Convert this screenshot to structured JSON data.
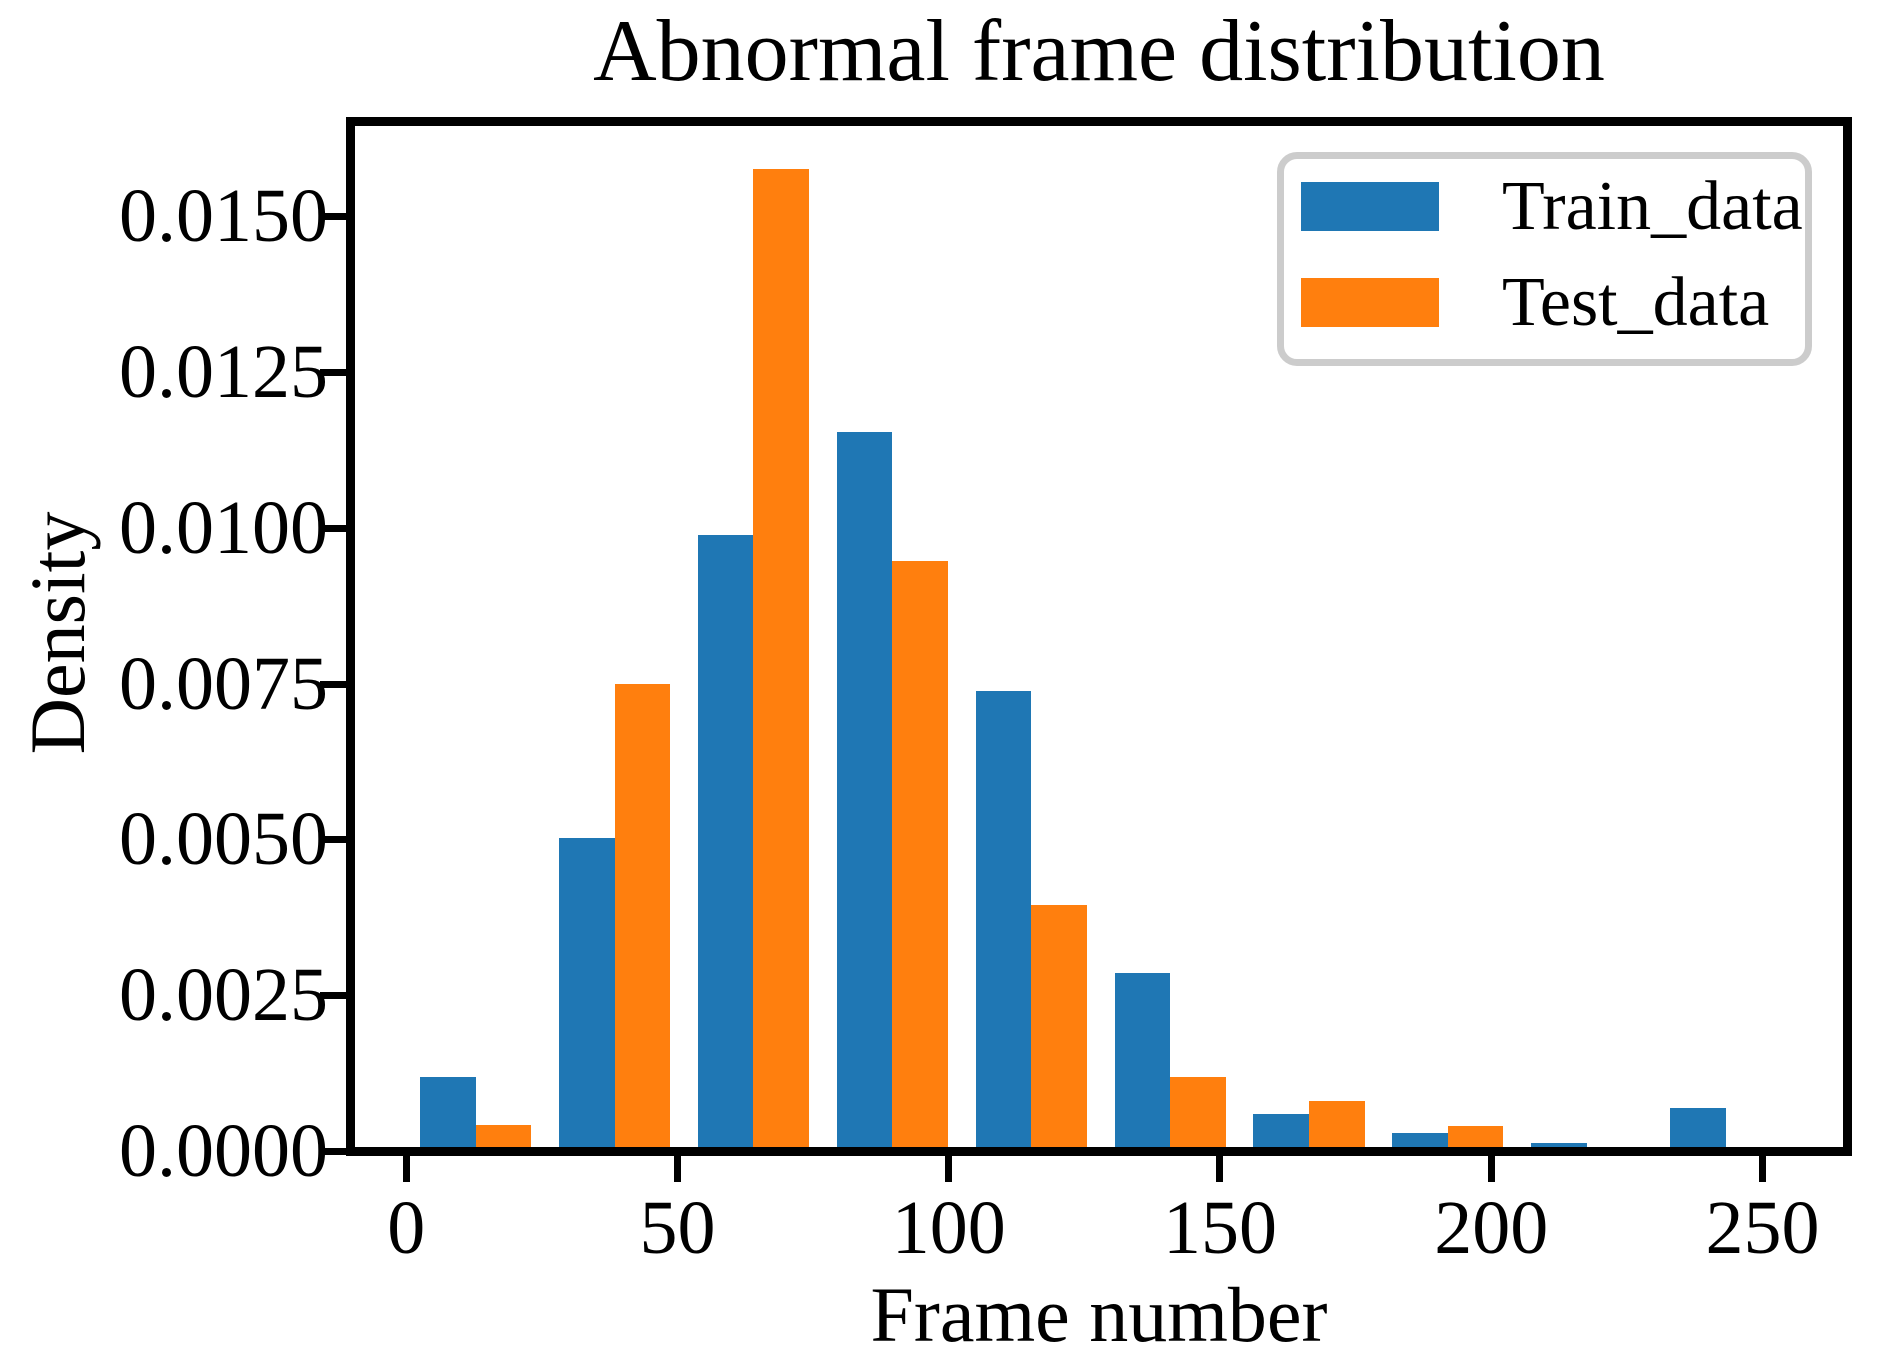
{
  "chart_data": {
    "type": "bar",
    "subtype": "grouped-histogram",
    "title": "Abnormal frame distribution",
    "xlabel": "Frame number",
    "ylabel": "Density",
    "xlim": [
      -10,
      265
    ],
    "ylim": [
      0,
      0.01638
    ],
    "grid": false,
    "x_ticks": [
      0,
      50,
      100,
      150,
      200,
      250
    ],
    "y_ticks": [
      0,
      0.0025,
      0.005,
      0.0075,
      0.01,
      0.0125,
      0.015
    ],
    "y_tick_labels": [
      "0.0000",
      "0.0025",
      "0.0050",
      "0.0075",
      "0.0100",
      "0.0125",
      "0.0150"
    ],
    "bin_edges": [
      0,
      25.6,
      51.2,
      76.8,
      102.4,
      128.0,
      153.6,
      179.2,
      204.8,
      230.4,
      256.0
    ],
    "bar_width_frames": 10.24,
    "legend_position": "upper right",
    "series": [
      {
        "name": "Train_data",
        "color": "#1f77b4",
        "bar_offset_frames": 2.56,
        "densities": [
          0.00112,
          0.00495,
          0.00982,
          0.01147,
          0.00732,
          0.00279,
          0.00053,
          0.00022,
          6e-05,
          0.00062
        ]
      },
      {
        "name": "Test_data",
        "color": "#ff7f0e",
        "bar_offset_frames": 12.8,
        "densities": [
          0.00036,
          0.00742,
          0.01569,
          0.0094,
          0.00388,
          0.00113,
          0.00073,
          0.00034,
          0,
          0
        ]
      }
    ],
    "axis_color": "#000000",
    "background_color": "#ffffff",
    "legend_border_color": "#cccccc"
  }
}
